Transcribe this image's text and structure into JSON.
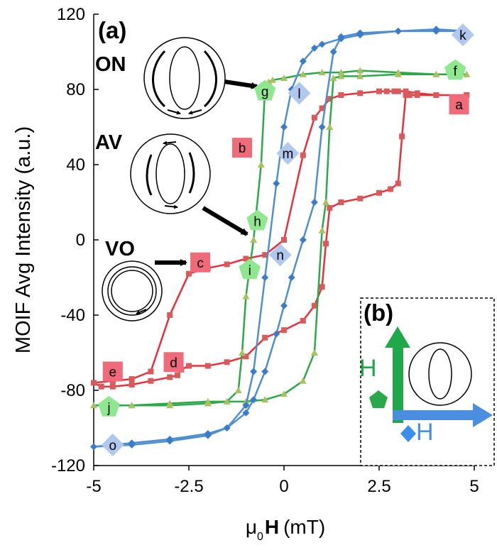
{
  "chart_data": {
    "type": "line",
    "title": "",
    "panel_labels": {
      "a": "(a)",
      "b": "(b)"
    },
    "ylabel": "MOIF Avg Intensity (a.u.)",
    "xlabel_prefix": "μ",
    "xlabel_sub": "0",
    "xlabel_var": "H",
    "xlabel_unit": "(mT)",
    "xlim": [
      -5,
      5
    ],
    "ylim": [
      -120,
      120
    ],
    "xticks": [
      -5,
      -2.5,
      0,
      2.5,
      5
    ],
    "xtick_labels": [
      "-5",
      "-2.5",
      "0",
      "2.5",
      "5"
    ],
    "yticks": [
      -120,
      -80,
      -40,
      0,
      40,
      80,
      120
    ],
    "ytick_labels": [
      "-120",
      "-80",
      "-40",
      "0",
      "40",
      "80",
      "120"
    ],
    "series": [
      {
        "name": "red",
        "color": "#e8303a",
        "marker_color": "#d95a5a",
        "marker": "square",
        "x": [
          4.8,
          4.0,
          3.5,
          3.3,
          3.2,
          3.1,
          3.0,
          2.8,
          2.5,
          2.0,
          1.5,
          1.2,
          1.1,
          1.0,
          0.8,
          0.5,
          0.0,
          -0.5,
          -1.0,
          -1.5,
          -2.0,
          -2.5,
          -2.7,
          -2.8,
          -3.0,
          -3.5,
          -4.0,
          -4.5,
          -4.8,
          -5.0,
          -4.5,
          -4.0,
          -3.5,
          -3.0,
          -2.5,
          -2.0,
          -1.5,
          -1.0,
          -0.5,
          0.0,
          0.5,
          0.8,
          1.0,
          1.2,
          1.5,
          2.0,
          2.5,
          2.7,
          2.9,
          3.0,
          3.2,
          3.5,
          4.0,
          4.8
        ],
        "y": [
          77,
          77,
          77,
          77,
          77,
          55,
          30,
          27,
          25,
          22,
          20,
          17,
          -2,
          -25,
          -35,
          -43,
          -48,
          -52,
          -62,
          -65,
          -67,
          -67,
          -69,
          -72,
          -73,
          -75,
          -77,
          -78,
          -78,
          -76,
          -75,
          -74,
          -70,
          -40,
          -18,
          -15,
          -13,
          -10,
          -8,
          0,
          45,
          65,
          70,
          75,
          77,
          78,
          79,
          79,
          79,
          79,
          79,
          78,
          77,
          77
        ]
      },
      {
        "name": "green",
        "color": "#2ba84a",
        "marker_color": "#a8c060",
        "marker": "triangle",
        "x": [
          4.8,
          4.0,
          3.0,
          2.0,
          1.5,
          1.3,
          1.2,
          1.1,
          1.0,
          0.8,
          0.5,
          0.0,
          -0.5,
          -1.0,
          -1.5,
          -2.0,
          -3.0,
          -4.0,
          -5.0,
          -4.0,
          -3.0,
          -2.0,
          -1.5,
          -1.2,
          -1.1,
          -1.0,
          -0.8,
          -0.6,
          -0.5,
          -0.4,
          -0.3,
          0.0,
          0.5,
          1.0,
          1.5,
          2.0,
          3.0,
          4.0,
          4.8
        ],
        "y": [
          88,
          88,
          88,
          87,
          87,
          86,
          60,
          20,
          5,
          -60,
          -75,
          -82,
          -85,
          -86,
          -86,
          -87,
          -88,
          -88,
          -88,
          -88,
          -87,
          -86,
          -86,
          -80,
          -60,
          -30,
          0,
          40,
          80,
          84,
          85,
          86,
          88,
          89,
          89,
          90,
          89,
          88,
          88
        ]
      },
      {
        "name": "blue",
        "color": "#4f8fd0",
        "marker_color": "#3a7cc8",
        "marker": "diamond",
        "x": [
          4.8,
          4.0,
          3.0,
          2.0,
          1.5,
          1.3,
          1.0,
          0.8,
          0.5,
          0.2,
          0.0,
          -0.2,
          -0.5,
          -0.8,
          -1.0,
          -1.5,
          -2.0,
          -3.0,
          -4.0,
          -5.0,
          -4.0,
          -3.0,
          -2.0,
          -1.5,
          -1.0,
          -0.8,
          -0.5,
          -0.2,
          0.0,
          0.2,
          0.5,
          0.8,
          1.0,
          1.5,
          2.0,
          3.0,
          4.0,
          4.8
        ],
        "y": [
          111,
          111,
          111,
          110,
          108,
          100,
          60,
          20,
          0,
          -20,
          -35,
          -50,
          -70,
          -85,
          -92,
          -100,
          -104,
          -107,
          -109,
          -110,
          -108,
          -106,
          -103,
          -100,
          -88,
          -70,
          -20,
          30,
          60,
          80,
          95,
          102,
          104,
          107,
          109,
          111,
          112,
          111
        ]
      }
    ],
    "point_labels": [
      {
        "label": "a",
        "shape": "square",
        "color": "#f06b7a",
        "x": 4.6,
        "y": 72
      },
      {
        "label": "b",
        "shape": "square",
        "color": "#f06b7a",
        "x": -1.1,
        "y": 49
      },
      {
        "label": "c",
        "shape": "square",
        "color": "#f06b7a",
        "x": -2.2,
        "y": -12
      },
      {
        "label": "d",
        "shape": "square",
        "color": "#f06b7a",
        "x": -2.9,
        "y": -65
      },
      {
        "label": "e",
        "shape": "square",
        "color": "#f06b7a",
        "x": -4.5,
        "y": -70
      },
      {
        "label": "f",
        "shape": "pentagon",
        "color": "#8fe88f",
        "x": 4.5,
        "y": 90
      },
      {
        "label": "g",
        "shape": "pentagon",
        "color": "#8fe88f",
        "x": -0.5,
        "y": 79
      },
      {
        "label": "h",
        "shape": "pentagon",
        "color": "#8fe88f",
        "x": -0.7,
        "y": 10
      },
      {
        "label": "i",
        "shape": "pentagon",
        "color": "#8fe88f",
        "x": -0.9,
        "y": -16
      },
      {
        "label": "j",
        "shape": "pentagon",
        "color": "#8fe88f",
        "x": -4.6,
        "y": -89
      },
      {
        "label": "k",
        "shape": "diamond",
        "color": "#b0c8ee",
        "x": 4.7,
        "y": 109
      },
      {
        "label": "l",
        "shape": "diamond",
        "color": "#b0c8ee",
        "x": 0.4,
        "y": 78
      },
      {
        "label": "m",
        "shape": "diamond",
        "color": "#b0c8ee",
        "x": 0.1,
        "y": 46
      },
      {
        "label": "n",
        "shape": "diamond",
        "color": "#b0c8ee",
        "x": -0.1,
        "y": -8
      },
      {
        "label": "o",
        "shape": "diamond",
        "color": "#b0c8ee",
        "x": -4.5,
        "y": -109
      }
    ],
    "state_labels": {
      "on": "ON",
      "av": "AV",
      "vo": "VO"
    },
    "inset": {
      "h_green": "H",
      "h_blue": "H",
      "green": "#20a84a",
      "blue": "#4a8ee0",
      "green_marker": "#2ba84a",
      "blue_marker": "#3a8ef0"
    }
  }
}
